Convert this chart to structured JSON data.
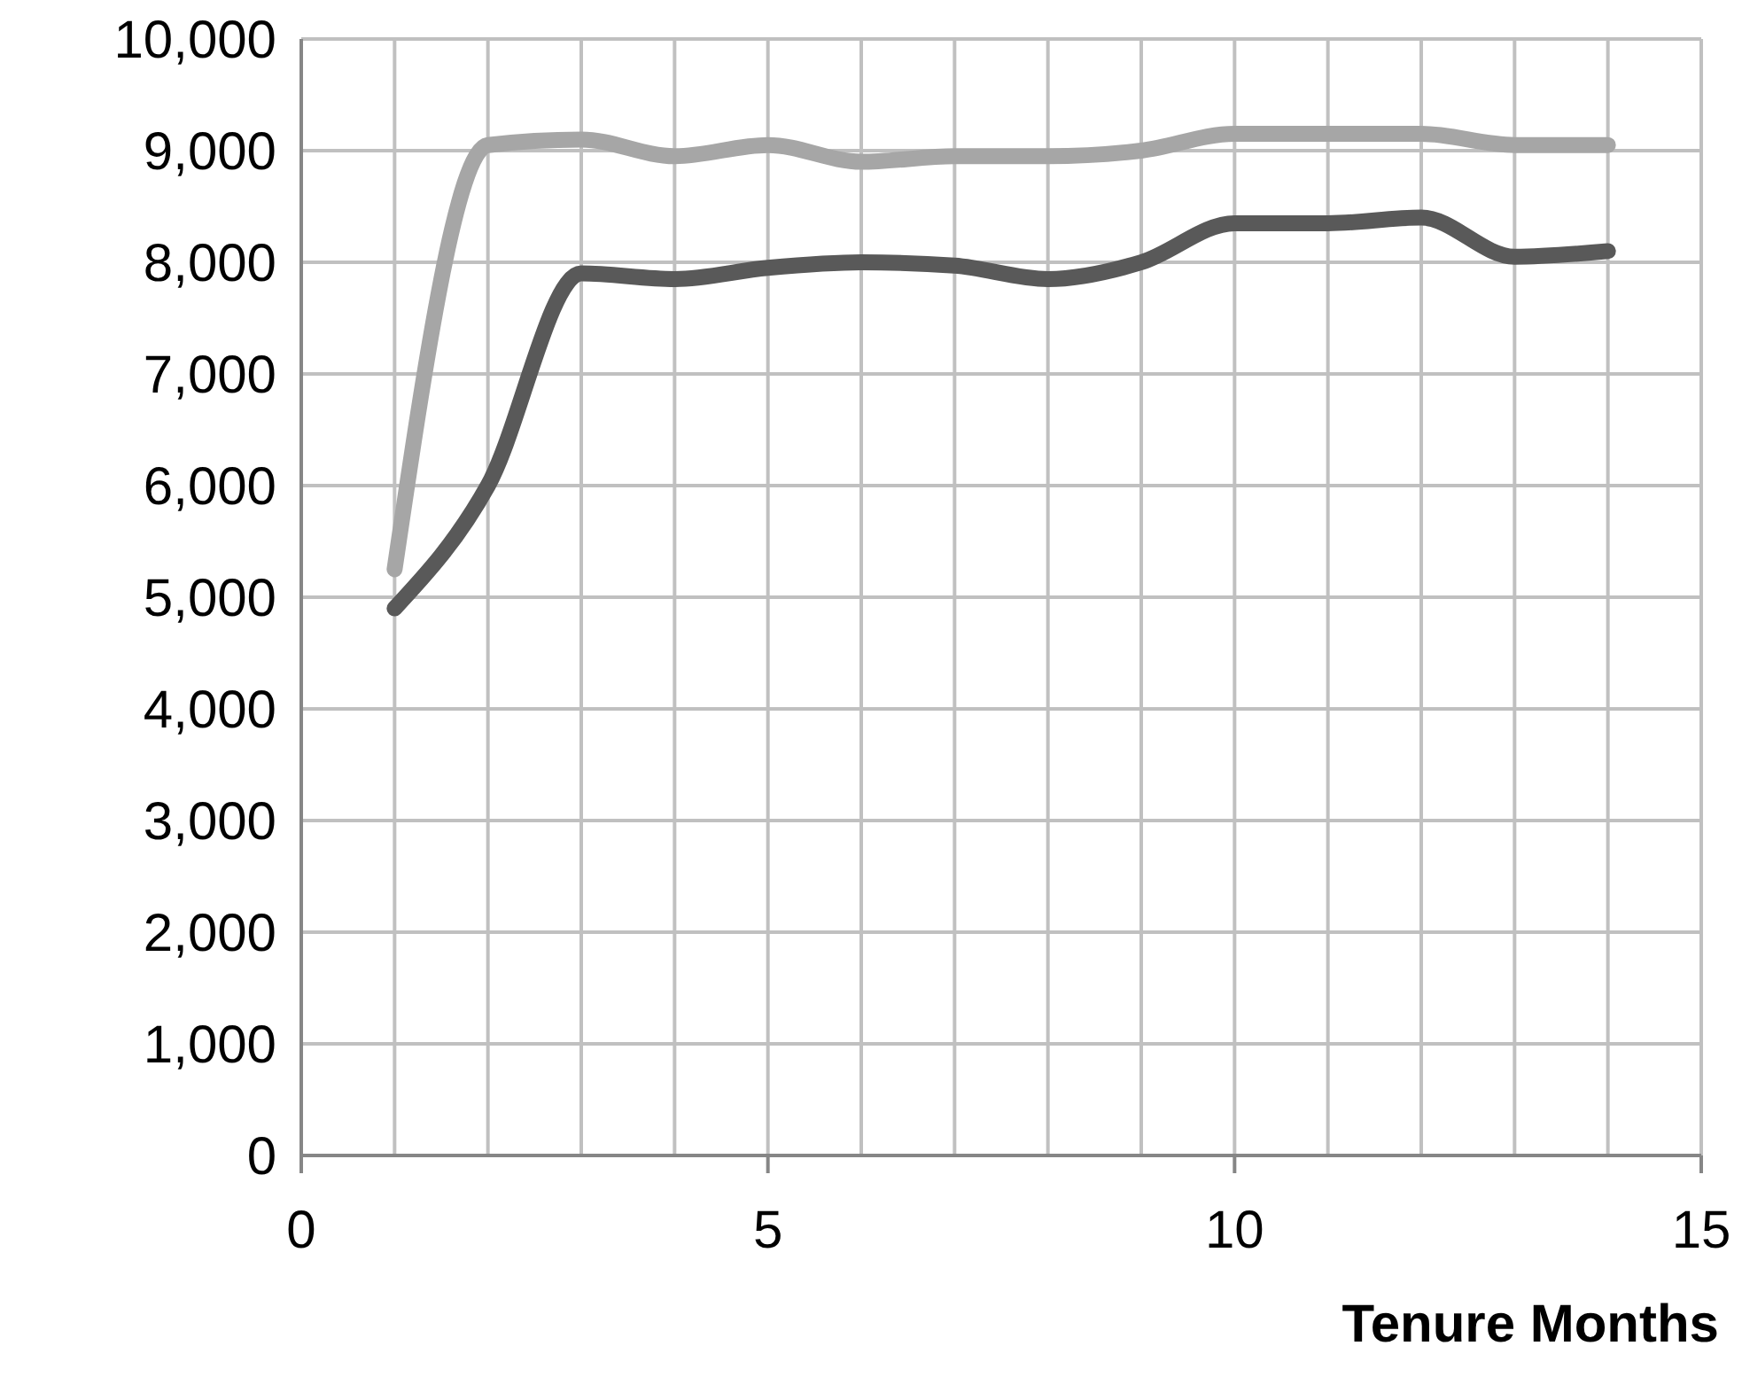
{
  "chart_data": {
    "type": "line",
    "xlabel": "Tenure Months",
    "xlim": [
      0,
      15
    ],
    "xticks": [
      0,
      {
        "value": 1,
        "label": null
      },
      {
        "value": 2,
        "label": null
      },
      {
        "value": 3,
        "label": null
      },
      {
        "value": 4,
        "label": null
      },
      5,
      {
        "value": 6,
        "label": null
      },
      {
        "value": 7,
        "label": null
      },
      {
        "value": 8,
        "label": null
      },
      {
        "value": 9,
        "label": null
      },
      10,
      {
        "value": 11,
        "label": null
      },
      {
        "value": 12,
        "label": null
      },
      {
        "value": 13,
        "label": null
      },
      {
        "value": 14,
        "label": null
      },
      15
    ],
    "ylim": [
      0,
      10000
    ],
    "yticks": [
      {
        "value": 0,
        "label": "0"
      },
      {
        "value": 1000,
        "label": "1,000"
      },
      {
        "value": 2000,
        "label": "2,000"
      },
      {
        "value": 3000,
        "label": "3,000"
      },
      {
        "value": 4000,
        "label": "4,000"
      },
      {
        "value": 5000,
        "label": "5,000"
      },
      {
        "value": 6000,
        "label": "6,000"
      },
      {
        "value": 7000,
        "label": "7,000"
      },
      {
        "value": 8000,
        "label": "8,000"
      },
      {
        "value": 9000,
        "label": "9,000"
      },
      {
        "value": 10000,
        "label": "10,000"
      }
    ],
    "x": [
      1,
      2,
      3,
      4,
      5,
      6,
      7,
      8,
      9,
      10,
      11,
      12,
      13,
      14
    ],
    "grid": true,
    "marker": "none",
    "line_style": "solid",
    "series": [
      {
        "color": "#a6a6a6",
        "values": [
          5250,
          9050,
          9100,
          8950,
          9050,
          8900,
          8950,
          8950,
          9000,
          9150,
          9150,
          9150,
          9050,
          9050
        ]
      },
      {
        "color": "#595959",
        "values": [
          4900,
          6000,
          7900,
          7850,
          7950,
          8000,
          7970,
          7850,
          8000,
          8350,
          8350,
          8400,
          8050,
          8100
        ]
      }
    ]
  }
}
